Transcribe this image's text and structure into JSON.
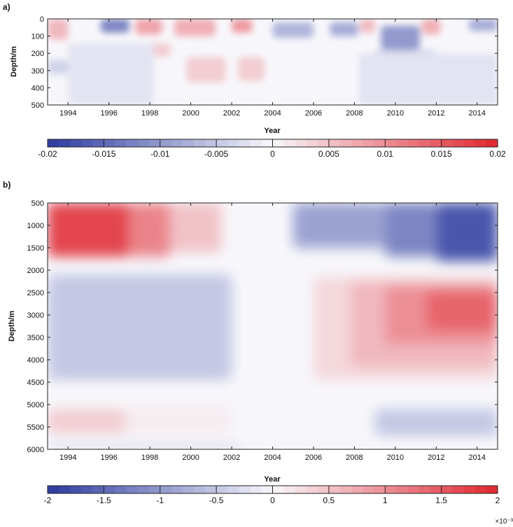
{
  "chart_data": [
    {
      "panel_label": "a)",
      "type": "heatmap",
      "xlabel": "Year",
      "ylabel": "Depth/m",
      "xlim": [
        1993,
        2015
      ],
      "ylim": [
        0,
        500
      ],
      "y_reversed": true,
      "x_ticks": [
        1994,
        1996,
        1998,
        2000,
        2002,
        2004,
        2006,
        2008,
        2010,
        2012,
        2014
      ],
      "y_ticks": [
        0,
        100,
        200,
        300,
        400,
        500
      ],
      "colorbar": {
        "min": -0.02,
        "max": 0.02,
        "ticks": [
          "-0.02",
          "-0.015",
          "-0.01",
          "-0.005",
          "0",
          "0.005",
          "0.01",
          "0.015",
          "0.02"
        ],
        "multiplier": "",
        "colors": {
          "negative": "#2b3a9e",
          "zero": "#f7f7fb",
          "positive": "#e0262e"
        }
      },
      "features": [
        {
          "x": [
            1993.0,
            1994.0
          ],
          "y": [
            0,
            120
          ],
          "value": 0.006
        },
        {
          "x": [
            1995.6,
            1997.0
          ],
          "y": [
            0,
            80
          ],
          "value": -0.012
        },
        {
          "x": [
            1997.3,
            1998.6
          ],
          "y": [
            0,
            90
          ],
          "value": 0.008
        },
        {
          "x": [
            1999.2,
            2001.2
          ],
          "y": [
            0,
            100
          ],
          "value": 0.007
        },
        {
          "x": [
            2002.0,
            2003.0
          ],
          "y": [
            0,
            80
          ],
          "value": 0.009
        },
        {
          "x": [
            2004.0,
            2006.0
          ],
          "y": [
            20,
            110
          ],
          "value": -0.007
        },
        {
          "x": [
            2006.8,
            2008.2
          ],
          "y": [
            20,
            100
          ],
          "value": -0.008
        },
        {
          "x": [
            2008.3,
            2009.0
          ],
          "y": [
            0,
            80
          ],
          "value": 0.006
        },
        {
          "x": [
            2009.3,
            2011.2
          ],
          "y": [
            40,
            180
          ],
          "value": -0.01
        },
        {
          "x": [
            2011.3,
            2012.2
          ],
          "y": [
            0,
            90
          ],
          "value": 0.007
        },
        {
          "x": [
            2013.6,
            2015.0
          ],
          "y": [
            0,
            70
          ],
          "value": -0.008
        },
        {
          "x": [
            1997.0,
            1999.0
          ],
          "y": [
            140,
            220
          ],
          "value": 0.004
        },
        {
          "x": [
            1999.8,
            2001.7
          ],
          "y": [
            220,
            370
          ],
          "value": 0.004
        },
        {
          "x": [
            2002.3,
            2003.6
          ],
          "y": [
            220,
            360
          ],
          "value": 0.004
        },
        {
          "x": [
            1993.0,
            1994.0
          ],
          "y": [
            240,
            320
          ],
          "value": -0.004
        },
        {
          "x": [
            2009.0,
            2012.0
          ],
          "y": [
            180,
            420
          ],
          "value": -0.004
        },
        {
          "x": [
            2012.2,
            2013.9
          ],
          "y": [
            250,
            450
          ],
          "value": -0.006
        },
        {
          "x": [
            1994.0,
            1998.2
          ],
          "y": [
            140,
            500
          ],
          "value": -0.002
        },
        {
          "x": [
            2008.2,
            2015.0
          ],
          "y": [
            200,
            500
          ],
          "value": -0.002
        }
      ]
    },
    {
      "panel_label": "b)",
      "type": "heatmap",
      "xlabel": "Year",
      "ylabel": "Depth/m",
      "xlim": [
        1993,
        2015
      ],
      "ylim": [
        500,
        6000
      ],
      "y_reversed": true,
      "x_ticks": [
        1994,
        1996,
        1998,
        2000,
        2002,
        2004,
        2006,
        2008,
        2010,
        2012,
        2014
      ],
      "y_ticks": [
        500,
        1000,
        1500,
        2000,
        2500,
        3000,
        3500,
        4000,
        4500,
        5000,
        5500,
        6000
      ],
      "colorbar": {
        "min": -2,
        "max": 2,
        "ticks": [
          "-2",
          "-1.5",
          "-1",
          "-0.5",
          "0",
          "0.5",
          "1",
          "1.5",
          "2"
        ],
        "multiplier": "×10⁻³",
        "colors": {
          "negative": "#2b3a9e",
          "zero": "#f7f7fb",
          "positive": "#e0262e"
        }
      },
      "features": [
        {
          "x": [
            1993.0,
            1997.0
          ],
          "y": [
            500,
            1700
          ],
          "value": 1.7
        },
        {
          "x": [
            1997.0,
            1999.0
          ],
          "y": [
            500,
            1700
          ],
          "value": 1.1
        },
        {
          "x": [
            1999.0,
            2001.5
          ],
          "y": [
            500,
            1600
          ],
          "value": 0.5
        },
        {
          "x": [
            2005.0,
            2009.5
          ],
          "y": [
            500,
            1500
          ],
          "value": -0.9
        },
        {
          "x": [
            2009.5,
            2012.0
          ],
          "y": [
            500,
            1700
          ],
          "value": -1.2
        },
        {
          "x": [
            2012.0,
            2015.0
          ],
          "y": [
            500,
            1800
          ],
          "value": -1.7
        },
        {
          "x": [
            1993.0,
            1996.5
          ],
          "y": [
            2400,
            3500
          ],
          "value": -1.7
        },
        {
          "x": [
            1993.0,
            1998.5
          ],
          "y": [
            2200,
            4100
          ],
          "value": -1.1
        },
        {
          "x": [
            1993.0,
            2002.0
          ],
          "y": [
            2100,
            4450
          ],
          "value": -0.5
        },
        {
          "x": [
            2006.0,
            2015.0
          ],
          "y": [
            2150,
            4450
          ],
          "value": 0.3
        },
        {
          "x": [
            2007.8,
            2015.0
          ],
          "y": [
            2250,
            4150
          ],
          "value": 0.6
        },
        {
          "x": [
            2009.5,
            2015.0
          ],
          "y": [
            2350,
            3650
          ],
          "value": 1.0
        },
        {
          "x": [
            2011.5,
            2015.0
          ],
          "y": [
            2450,
            3350
          ],
          "value": 1.4
        },
        {
          "x": [
            1993.0,
            1996.8
          ],
          "y": [
            5100,
            5650
          ],
          "value": 0.4
        },
        {
          "x": [
            1996.8,
            2002.0
          ],
          "y": [
            5000,
            5700
          ],
          "value": 0.1
        },
        {
          "x": [
            2009.0,
            2015.0
          ],
          "y": [
            5100,
            5700
          ],
          "value": -0.5
        },
        {
          "x": [
            1993.0,
            2002.5
          ],
          "y": [
            5900,
            6000
          ],
          "value": -0.4
        }
      ]
    }
  ]
}
